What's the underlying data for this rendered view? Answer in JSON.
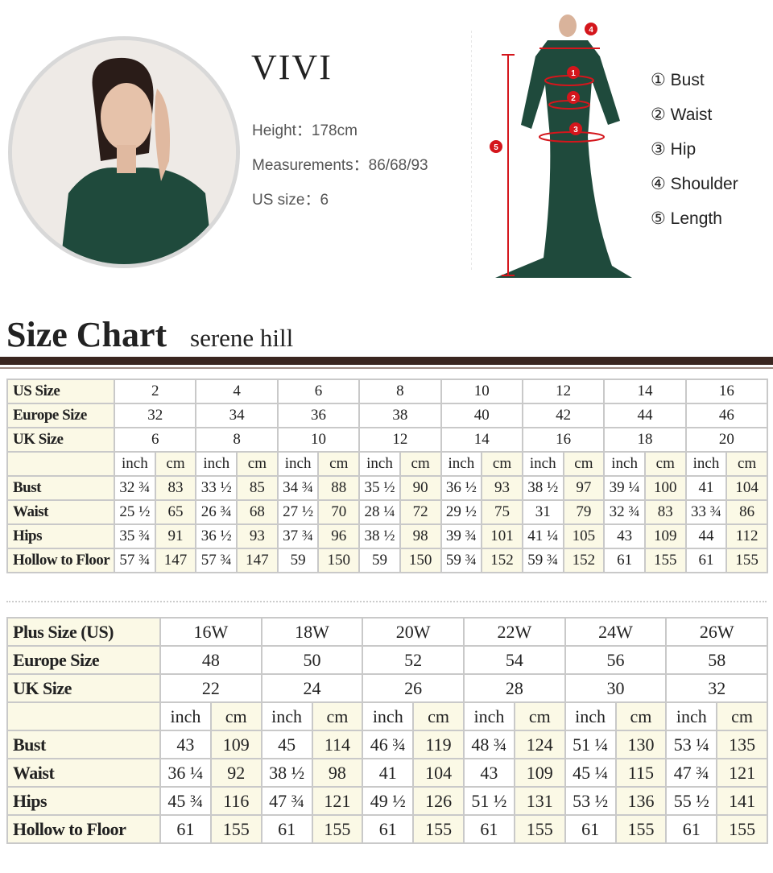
{
  "model": {
    "name": "VIVI",
    "height": "Height：178cm",
    "measurements": "Measurements：86/68/93",
    "us_size": "US size：6"
  },
  "measure_legend": [
    "① Bust",
    "② Waist",
    "③ Hip",
    "④ Shoulder",
    "⑤ Length"
  ],
  "dress_markers": [
    "1",
    "2",
    "3",
    "4",
    "5"
  ],
  "title": "Size Chart",
  "subtitle": "serene hill",
  "colors": {
    "marker": "#d4161c",
    "dress": "#1f4a3c",
    "rule": "#3a2620",
    "label_bg": "#fbf9e6"
  },
  "standard_table": {
    "size_rows": [
      {
        "label": "US Size",
        "values": [
          "2",
          "4",
          "6",
          "8",
          "10",
          "12",
          "14",
          "16"
        ]
      },
      {
        "label": "Europe Size",
        "values": [
          "32",
          "34",
          "36",
          "38",
          "40",
          "42",
          "44",
          "46"
        ]
      },
      {
        "label": "UK Size",
        "values": [
          "6",
          "8",
          "10",
          "12",
          "14",
          "16",
          "18",
          "20"
        ]
      }
    ],
    "units": [
      "inch",
      "cm"
    ],
    "measure_rows": [
      {
        "label": "Bust",
        "values": [
          "32 ¾",
          "83",
          "33 ½",
          "85",
          "34 ¾",
          "88",
          "35 ½",
          "90",
          "36 ½",
          "93",
          "38 ½",
          "97",
          "39 ¼",
          "100",
          "41",
          "104"
        ]
      },
      {
        "label": "Waist",
        "values": [
          "25 ½",
          "65",
          "26 ¾",
          "68",
          "27 ½",
          "70",
          "28 ¼",
          "72",
          "29 ½",
          "75",
          "31",
          "79",
          "32 ¾",
          "83",
          "33 ¾",
          "86"
        ]
      },
      {
        "label": "Hips",
        "values": [
          "35 ¾",
          "91",
          "36 ½",
          "93",
          "37 ¾",
          "96",
          "38 ½",
          "98",
          "39 ¾",
          "101",
          "41 ¼",
          "105",
          "43",
          "109",
          "44",
          "112"
        ]
      },
      {
        "label": "Hollow to Floor",
        "values": [
          "57 ¾",
          "147",
          "57 ¾",
          "147",
          "59",
          "150",
          "59",
          "150",
          "59 ¾",
          "152",
          "59 ¾",
          "152",
          "61",
          "155",
          "61",
          "155"
        ]
      }
    ]
  },
  "plus_table": {
    "size_rows": [
      {
        "label": "Plus Size (US)",
        "values": [
          "16W",
          "18W",
          "20W",
          "22W",
          "24W",
          "26W"
        ]
      },
      {
        "label": "Europe Size",
        "values": [
          "48",
          "50",
          "52",
          "54",
          "56",
          "58"
        ]
      },
      {
        "label": "UK Size",
        "values": [
          "22",
          "24",
          "26",
          "28",
          "30",
          "32"
        ]
      }
    ],
    "units": [
      "inch",
      "cm"
    ],
    "measure_rows": [
      {
        "label": "Bust",
        "values": [
          "43",
          "109",
          "45",
          "114",
          "46 ¾",
          "119",
          "48 ¾",
          "124",
          "51 ¼",
          "130",
          "53 ¼",
          "135"
        ]
      },
      {
        "label": "Waist",
        "values": [
          "36 ¼",
          "92",
          "38 ½",
          "98",
          "41",
          "104",
          "43",
          "109",
          "45 ¼",
          "115",
          "47 ¾",
          "121"
        ]
      },
      {
        "label": "Hips",
        "values": [
          "45 ¾",
          "116",
          "47 ¾",
          "121",
          "49 ½",
          "126",
          "51 ½",
          "131",
          "53 ½",
          "136",
          "55 ½",
          "141"
        ]
      },
      {
        "label": "Hollow to Floor",
        "values": [
          "61",
          "155",
          "61",
          "155",
          "61",
          "155",
          "61",
          "155",
          "61",
          "155",
          "61",
          "155"
        ]
      }
    ]
  }
}
